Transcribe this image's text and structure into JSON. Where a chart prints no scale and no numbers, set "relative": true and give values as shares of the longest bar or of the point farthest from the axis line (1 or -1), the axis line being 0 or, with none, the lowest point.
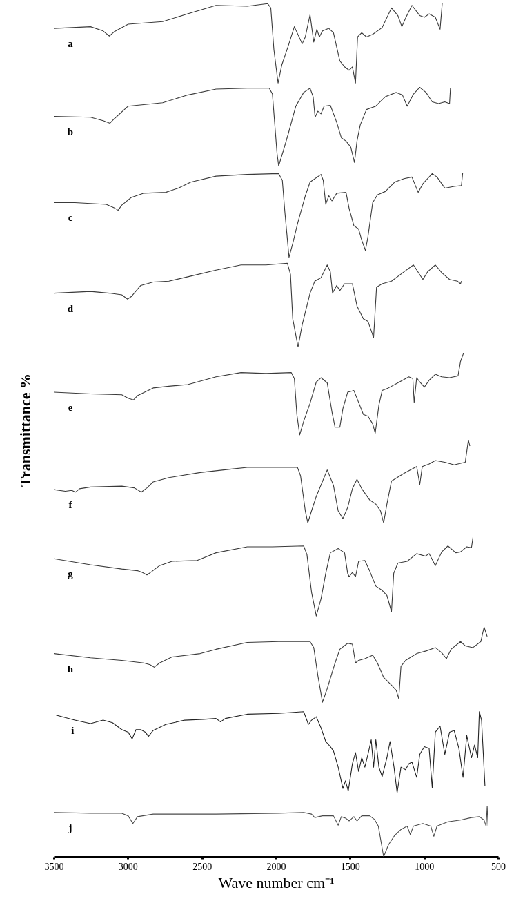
{
  "chart_data": {
    "type": "line",
    "relative": true,
    "xlabel": "Wave number cm⁻¹",
    "ylabel": "Transmittance %",
    "xlim": [
      3500,
      500
    ],
    "xticks": [
      3500,
      3000,
      2500,
      2000,
      1500,
      1000,
      500
    ],
    "series": [
      {
        "name": "a",
        "color": "#3a3a3a",
        "x": [
          3500,
          3252,
          3167,
          3125,
          3093,
          2998,
          2765,
          2596,
          2405,
          2194,
          2056,
          2035,
          2014,
          1986,
          1961,
          1918,
          1876,
          1823,
          1802,
          1770,
          1745,
          1724,
          1707,
          1686,
          1643,
          1612,
          1569,
          1537,
          1506,
          1484,
          1463,
          1449,
          1421,
          1389,
          1347,
          1283,
          1220,
          1177,
          1150,
          1125,
          1082,
          1029,
          998,
          966,
          924,
          892,
          877
        ],
        "values": [
          0.97,
          0.972,
          0.967,
          0.961,
          0.966,
          0.975,
          0.978,
          0.987,
          0.997,
          0.996,
          0.999,
          0.994,
          0.945,
          0.906,
          0.927,
          0.949,
          0.972,
          0.952,
          0.96,
          0.986,
          0.954,
          0.969,
          0.96,
          0.967,
          0.97,
          0.965,
          0.932,
          0.925,
          0.921,
          0.925,
          0.906,
          0.96,
          0.965,
          0.96,
          0.963,
          0.971,
          0.994,
          0.985,
          0.972,
          0.982,
          0.997,
          0.985,
          0.983,
          0.987,
          0.983,
          0.969,
          1.0
        ]
      },
      {
        "name": "b",
        "color": "#3a3a3a",
        "x": [
          3500,
          3252,
          3167,
          3121,
          3093,
          2998,
          2765,
          2596,
          2405,
          2194,
          2045,
          2024,
          1993,
          1982,
          1950,
          1918,
          1866,
          1813,
          1770,
          1749,
          1736,
          1717,
          1696,
          1675,
          1633,
          1590,
          1559,
          1527,
          1495,
          1470,
          1453,
          1431,
          1389,
          1326,
          1262,
          1188,
          1146,
          1114,
          1072,
          1029,
          987,
          945,
          902,
          860,
          828,
          822
        ],
        "values": [
          0.867,
          0.866,
          0.862,
          0.859,
          0.864,
          0.879,
          0.883,
          0.892,
          0.899,
          0.9,
          0.9,
          0.893,
          0.824,
          0.809,
          0.827,
          0.846,
          0.879,
          0.895,
          0.9,
          0.89,
          0.866,
          0.873,
          0.87,
          0.879,
          0.88,
          0.86,
          0.842,
          0.838,
          0.831,
          0.813,
          0.838,
          0.857,
          0.875,
          0.879,
          0.89,
          0.895,
          0.892,
          0.879,
          0.893,
          0.901,
          0.895,
          0.884,
          0.882,
          0.884,
          0.882,
          0.9
        ]
      },
      {
        "name": "c",
        "color": "#3a3a3a",
        "x": [
          3500,
          3358,
          3146,
          3093,
          3066,
          3041,
          2977,
          2892,
          2744,
          2659,
          2575,
          2405,
          2194,
          1982,
          1957,
          1940,
          1912,
          1887,
          1855,
          1802,
          1770,
          1696,
          1681,
          1664,
          1643,
          1622,
          1590,
          1527,
          1506,
          1474,
          1442,
          1421,
          1396,
          1379,
          1347,
          1315,
          1262,
          1199,
          1135,
          1082,
          1040,
          1008,
          945,
          913,
          860,
          797,
          748,
          739
        ],
        "values": [
          0.766,
          0.766,
          0.764,
          0.76,
          0.757,
          0.763,
          0.772,
          0.777,
          0.778,
          0.783,
          0.79,
          0.797,
          0.799,
          0.8,
          0.792,
          0.755,
          0.702,
          0.718,
          0.741,
          0.774,
          0.79,
          0.799,
          0.792,
          0.764,
          0.774,
          0.768,
          0.777,
          0.778,
          0.759,
          0.739,
          0.735,
          0.722,
          0.71,
          0.726,
          0.766,
          0.775,
          0.779,
          0.79,
          0.794,
          0.796,
          0.778,
          0.788,
          0.8,
          0.796,
          0.783,
          0.785,
          0.786,
          0.801
        ]
      },
      {
        "name": "d",
        "color": "#3a3a3a",
        "x": [
          3500,
          3252,
          3125,
          3041,
          3002,
          2977,
          2913,
          2829,
          2723,
          2575,
          2405,
          2236,
          2067,
          1923,
          1902,
          1887,
          1851,
          1823,
          1770,
          1738,
          1696,
          1654,
          1633,
          1618,
          1590,
          1569,
          1537,
          1484,
          1453,
          1410,
          1379,
          1341,
          1321,
          1283,
          1220,
          1135,
          1072,
          1008,
          976,
          924,
          881,
          828,
          775,
          754,
          748
        ],
        "values": [
          0.66,
          0.662,
          0.66,
          0.658,
          0.653,
          0.656,
          0.669,
          0.673,
          0.674,
          0.68,
          0.687,
          0.693,
          0.693,
          0.695,
          0.682,
          0.63,
          0.597,
          0.623,
          0.66,
          0.674,
          0.678,
          0.693,
          0.685,
          0.66,
          0.669,
          0.663,
          0.671,
          0.671,
          0.645,
          0.63,
          0.627,
          0.608,
          0.667,
          0.671,
          0.674,
          0.685,
          0.693,
          0.676,
          0.685,
          0.693,
          0.684,
          0.676,
          0.674,
          0.671,
          0.674
        ]
      },
      {
        "name": "e",
        "color": "#3a3a3a",
        "x": [
          3500,
          3252,
          3041,
          2998,
          2962,
          2935,
          2829,
          2723,
          2596,
          2532,
          2405,
          2236,
          2067,
          1897,
          1876,
          1859,
          1840,
          1813,
          1770,
          1728,
          1696,
          1654,
          1622,
          1601,
          1569,
          1548,
          1516,
          1474,
          1442,
          1410,
          1379,
          1347,
          1330,
          1305,
          1283,
          1241,
          1177,
          1103,
          1076,
          1067,
          1050,
          1029,
          998,
          966,
          924,
          881,
          828,
          771,
          754,
          733
        ],
        "values": [
          0.544,
          0.542,
          0.541,
          0.537,
          0.535,
          0.54,
          0.549,
          0.551,
          0.553,
          0.556,
          0.562,
          0.567,
          0.566,
          0.567,
          0.56,
          0.518,
          0.494,
          0.51,
          0.531,
          0.556,
          0.561,
          0.555,
          0.521,
          0.503,
          0.503,
          0.525,
          0.544,
          0.546,
          0.532,
          0.518,
          0.516,
          0.507,
          0.496,
          0.529,
          0.546,
          0.549,
          0.555,
          0.562,
          0.56,
          0.532,
          0.561,
          0.556,
          0.55,
          0.558,
          0.565,
          0.562,
          0.561,
          0.563,
          0.58,
          0.59
        ]
      },
      {
        "name": "f",
        "color": "#3a3a3a",
        "x": [
          3500,
          3422,
          3379,
          3354,
          3326,
          3252,
          3041,
          2956,
          2909,
          2871,
          2829,
          2723,
          2511,
          2300,
          2194,
          1855,
          1834,
          1802,
          1785,
          1760,
          1728,
          1654,
          1612,
          1580,
          1548,
          1516,
          1484,
          1453,
          1421,
          1368,
          1326,
          1294,
          1273,
          1251,
          1220,
          1135,
          1050,
          1029,
          1012,
          966,
          924,
          860,
          797,
          722,
          701,
          691
        ],
        "values": [
          0.43,
          0.428,
          0.429,
          0.427,
          0.431,
          0.433,
          0.434,
          0.432,
          0.427,
          0.432,
          0.439,
          0.444,
          0.45,
          0.454,
          0.456,
          0.456,
          0.446,
          0.405,
          0.391,
          0.405,
          0.422,
          0.453,
          0.435,
          0.405,
          0.396,
          0.409,
          0.431,
          0.442,
          0.431,
          0.418,
          0.413,
          0.405,
          0.391,
          0.413,
          0.44,
          0.449,
          0.457,
          0.436,
          0.457,
          0.46,
          0.464,
          0.462,
          0.459,
          0.462,
          0.488,
          0.481
        ]
      },
      {
        "name": "g",
        "color": "#3a3a3a",
        "x": [
          3500,
          3358,
          3252,
          3041,
          2935,
          2903,
          2871,
          2839,
          2786,
          2702,
          2532,
          2405,
          2194,
          2024,
          1813,
          1791,
          1760,
          1728,
          1696,
          1664,
          1633,
          1580,
          1537,
          1516,
          1506,
          1484,
          1463,
          1442,
          1400,
          1368,
          1326,
          1283,
          1251,
          1220,
          1205,
          1177,
          1114,
          1050,
          991,
          966,
          924,
          881,
          839,
          786,
          754,
          712,
          680,
          670
        ],
        "values": [
          0.349,
          0.345,
          0.342,
          0.337,
          0.335,
          0.333,
          0.33,
          0.334,
          0.341,
          0.346,
          0.347,
          0.356,
          0.363,
          0.363,
          0.364,
          0.354,
          0.31,
          0.282,
          0.302,
          0.332,
          0.356,
          0.361,
          0.356,
          0.332,
          0.328,
          0.333,
          0.328,
          0.346,
          0.347,
          0.335,
          0.317,
          0.312,
          0.306,
          0.287,
          0.332,
          0.344,
          0.346,
          0.355,
          0.352,
          0.355,
          0.341,
          0.357,
          0.364,
          0.356,
          0.357,
          0.363,
          0.362,
          0.374
        ]
      },
      {
        "name": "h",
        "color": "#3a3a3a",
        "x": [
          3500,
          3252,
          3041,
          2892,
          2850,
          2822,
          2786,
          2702,
          2511,
          2405,
          2194,
          1982,
          1770,
          1745,
          1717,
          1686,
          1654,
          1601,
          1569,
          1516,
          1484,
          1463,
          1442,
          1400,
          1347,
          1315,
          1273,
          1220,
          1188,
          1171,
          1156,
          1125,
          1050,
          987,
          924,
          881,
          849,
          818,
          754,
          722,
          670,
          617,
          595,
          574
        ],
        "values": [
          0.238,
          0.233,
          0.23,
          0.227,
          0.225,
          0.222,
          0.227,
          0.234,
          0.238,
          0.243,
          0.251,
          0.252,
          0.252,
          0.245,
          0.212,
          0.181,
          0.197,
          0.227,
          0.243,
          0.25,
          0.249,
          0.227,
          0.23,
          0.232,
          0.236,
          0.227,
          0.21,
          0.201,
          0.195,
          0.185,
          0.223,
          0.23,
          0.238,
          0.241,
          0.245,
          0.239,
          0.232,
          0.243,
          0.252,
          0.247,
          0.245,
          0.252,
          0.269,
          0.258
        ]
      },
      {
        "name": "i",
        "color": "#222222",
        "x": [
          3485,
          3358,
          3252,
          3167,
          3104,
          3041,
          2998,
          2971,
          2945,
          2913,
          2882,
          2861,
          2829,
          2744,
          2617,
          2490,
          2405,
          2374,
          2342,
          2194,
          1982,
          1813,
          1781,
          1760,
          1728,
          1696,
          1664,
          1633,
          1612,
          1580,
          1548,
          1531,
          1512,
          1484,
          1463,
          1442,
          1421,
          1400,
          1379,
          1357,
          1341,
          1326,
          1305,
          1283,
          1251,
          1230,
          1203,
          1182,
          1156,
          1125,
          1103,
          1082,
          1050,
          1029,
          998,
          966,
          945,
          924,
          892,
          860,
          828,
          797,
          765,
          737,
          712,
          680,
          659,
          638,
          627,
          612,
          589
        ],
        "values": [
          0.166,
          0.16,
          0.156,
          0.16,
          0.157,
          0.149,
          0.146,
          0.138,
          0.149,
          0.149,
          0.146,
          0.141,
          0.148,
          0.155,
          0.16,
          0.161,
          0.162,
          0.158,
          0.162,
          0.167,
          0.168,
          0.17,
          0.155,
          0.16,
          0.164,
          0.151,
          0.135,
          0.129,
          0.124,
          0.105,
          0.08,
          0.089,
          0.077,
          0.109,
          0.122,
          0.1,
          0.116,
          0.105,
          0.12,
          0.137,
          0.105,
          0.137,
          0.105,
          0.094,
          0.116,
          0.135,
          0.105,
          0.075,
          0.105,
          0.102,
          0.109,
          0.111,
          0.093,
          0.12,
          0.129,
          0.127,
          0.081,
          0.146,
          0.153,
          0.12,
          0.146,
          0.148,
          0.127,
          0.093,
          0.142,
          0.116,
          0.131,
          0.116,
          0.17,
          0.16,
          0.083
        ]
      },
      {
        "name": "j",
        "color": "#4a4a4a",
        "x": [
          3500,
          3252,
          3041,
          2998,
          2966,
          2935,
          2829,
          2405,
          1982,
          1813,
          1760,
          1738,
          1686,
          1612,
          1580,
          1559,
          1527,
          1506,
          1474,
          1453,
          1421,
          1368,
          1336,
          1309,
          1273,
          1241,
          1199,
          1156,
          1114,
          1093,
          1072,
          1008,
          955,
          934,
          913,
          839,
          754,
          680,
          627,
          595,
          581,
          574,
          568
        ],
        "values": [
          0.052,
          0.051,
          0.051,
          0.048,
          0.039,
          0.047,
          0.05,
          0.05,
          0.051,
          0.052,
          0.05,
          0.046,
          0.048,
          0.048,
          0.037,
          0.047,
          0.045,
          0.042,
          0.047,
          0.042,
          0.048,
          0.048,
          0.044,
          0.036,
          0.0,
          0.014,
          0.025,
          0.032,
          0.036,
          0.026,
          0.036,
          0.039,
          0.036,
          0.024,
          0.036,
          0.041,
          0.043,
          0.046,
          0.047,
          0.043,
          0.036,
          0.059,
          0.036
        ]
      }
    ]
  }
}
